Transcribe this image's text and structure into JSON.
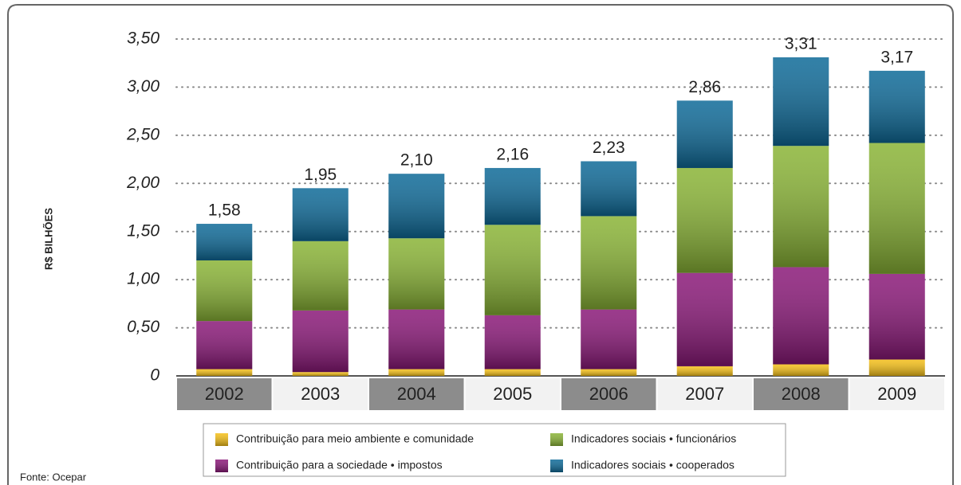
{
  "chart_data": {
    "type": "stacked_bar",
    "ylabel": "R$ BILHÕES",
    "source": "Fonte: Ocepar",
    "categories": [
      "2002",
      "2003",
      "2004",
      "2005",
      "2006",
      "2007",
      "2008",
      "2009"
    ],
    "series": [
      {
        "name": "Contribuição para meio ambiente e comunidade",
        "color": "#f5c018",
        "values": [
          0.07,
          0.04,
          0.07,
          0.07,
          0.07,
          0.1,
          0.12,
          0.17
        ]
      },
      {
        "name": "Contribuição para a sociedade • impostos",
        "color": "#8a1878",
        "values": [
          0.5,
          0.64,
          0.62,
          0.56,
          0.62,
          0.97,
          1.01,
          0.89
        ]
      },
      {
        "name": "Indicadores sociais • funcionários",
        "color": "#8ab436",
        "values": [
          0.63,
          0.72,
          0.74,
          0.94,
          0.97,
          1.09,
          1.26,
          1.36
        ]
      },
      {
        "name": "Indicadores sociais • cooperados",
        "color": "#0e6a98",
        "values": [
          0.38,
          0.55,
          0.67,
          0.59,
          0.57,
          0.7,
          0.92,
          0.75
        ]
      }
    ],
    "totals": [
      1.58,
      1.95,
      2.1,
      2.16,
      2.23,
      2.86,
      3.31,
      3.17
    ],
    "value_labels": [
      "1,58",
      "1,95",
      "2,10",
      "2,16",
      "2,23",
      "2,86",
      "3,31",
      "3,17"
    ],
    "ylim": [
      0,
      3.5
    ],
    "yticks": [
      0,
      {
        "value": 0.5,
        "label": "0,50"
      },
      {
        "value": 1,
        "label": "1,00"
      },
      {
        "value": 1.5,
        "label": "1,50"
      },
      {
        "value": 2,
        "label": "2,00"
      },
      {
        "value": 2.5,
        "label": "2,50"
      },
      {
        "value": 3,
        "label": "3,00"
      },
      {
        "value": 3.5,
        "label": "3,50"
      }
    ],
    "grid": true
  }
}
